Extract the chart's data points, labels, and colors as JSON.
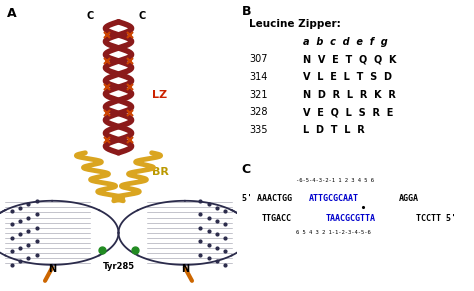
{
  "panel_A_label": "A",
  "panel_B_label": "B",
  "panel_C_label": "C",
  "leucine_zipper_title": "Leucine Zipper:",
  "heptad_labels": "a  b  c  d  e  f  g",
  "lz_rows": [
    {
      "num": "307",
      "seq": "N  V  E  T  Q  Q  K"
    },
    {
      "num": "314",
      "seq": "V  L  E  L  T  S  D"
    },
    {
      "num": "321",
      "seq": "N  D  R  L  R  K  R"
    },
    {
      "num": "328",
      "seq": "V  E  Q  L  S  R  E"
    },
    {
      "num": "335",
      "seq": "L  D  T  L  R"
    }
  ],
  "lz_label": "LZ",
  "br_label": "BR",
  "tyr_label": "Tyr285",
  "n_label": "N",
  "c_label": "C",
  "bg_color": "#ffffff",
  "text_color": "#000000",
  "blue_color": "#0000cc",
  "lz_color": "#cc2200",
  "br_color": "#bb9900",
  "dark_red": "#8B1A1A",
  "gold": "#DAA520",
  "dna_color": "#2b2b4b",
  "green_color": "#228B22",
  "orange_color": "#CC6600"
}
